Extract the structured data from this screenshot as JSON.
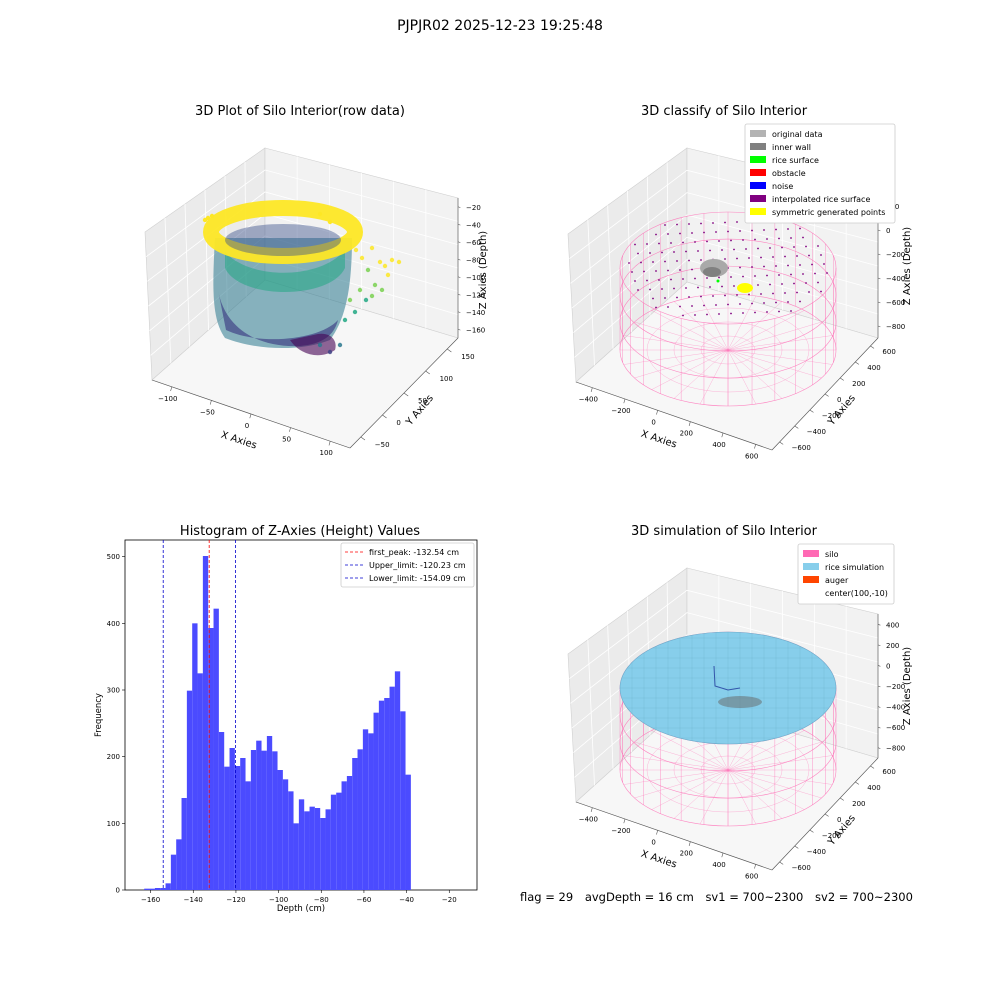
{
  "figure": {
    "suptitle": "PJPJR02 2025-12-23 19:25:48",
    "footer": {
      "flag": "flag = 29",
      "avg_depth": "avgDepth = 16 cm",
      "sv1": "sv1 = 700~2300",
      "sv2": "sv2 = 700~2300"
    }
  },
  "colors": {
    "hist_bar": "#4b4bff",
    "first_peak": "#ff0000",
    "limits": "#0000cc",
    "silo_pink": "#ff69b4",
    "rice_sim": "#87ceeb",
    "auger": "#ff4500"
  },
  "chart_data": [
    {
      "type": "scatter",
      "projection": "3d",
      "title": "3D Plot of Silo Interior(row data)",
      "xlabel": "X Axies",
      "ylabel": "Y Axies",
      "zlabel": "Z Axies (Depth)",
      "x_ticks": [
        "−100",
        "−50",
        "0",
        "50",
        "100"
      ],
      "y_ticks": [
        "−50",
        "0",
        "50",
        "100",
        "150"
      ],
      "z_ticks": [
        "−20",
        "−40",
        "−60",
        "−80",
        "−100",
        "−120",
        "−140",
        "−160"
      ],
      "colormap": "viridis"
    },
    {
      "type": "scatter",
      "projection": "3d",
      "title": "3D classify of Silo Interior",
      "xlabel": "X Axies",
      "ylabel": "Y Axies",
      "zlabel": "Z Axies (Depth)",
      "x_ticks": [
        "−400",
        "−200",
        "0",
        "200",
        "400",
        "600"
      ],
      "y_ticks": [
        "−600",
        "−400",
        "−200",
        "0",
        "200",
        "400",
        "600"
      ],
      "z_ticks": [
        "200",
        "0",
        "−200",
        "−400",
        "−600",
        "−800"
      ],
      "legend": [
        {
          "label": "original data",
          "color": "#b3b3b3"
        },
        {
          "label": "inner wall",
          "color": "#808080"
        },
        {
          "label": "rice surface",
          "color": "#00ff00"
        },
        {
          "label": "obstacle",
          "color": "#ff0000"
        },
        {
          "label": "noise",
          "color": "#0000ff"
        },
        {
          "label": "interpolated rice surface",
          "color": "#800080"
        },
        {
          "label": "symmetric generated points",
          "color": "#ffff00"
        }
      ]
    },
    {
      "type": "bar",
      "title": "Histogram of Z-Axies (Height) Values",
      "xlabel": "Depth (cm)",
      "ylabel": "Frequency",
      "xlim": [
        -172,
        -7
      ],
      "ylim": [
        0,
        525
      ],
      "x_ticks": [
        -160,
        -140,
        -120,
        -100,
        -80,
        -60,
        -40,
        -20
      ],
      "y_ticks": [
        0,
        100,
        200,
        300,
        400,
        500
      ],
      "bin_start": -163,
      "bin_width": 2.5,
      "values": [
        2,
        2,
        3,
        3,
        10,
        53,
        76,
        138,
        299,
        400,
        325,
        501,
        393,
        422,
        237,
        185,
        213,
        186,
        198,
        163,
        210,
        224,
        209,
        231,
        208,
        180,
        166,
        148,
        100,
        136,
        118,
        125,
        123,
        108,
        121,
        143,
        146,
        163,
        171,
        198,
        211,
        241,
        235,
        266,
        284,
        288,
        305,
        328,
        268,
        173
      ],
      "vlines": [
        {
          "label": "first_peak: -132.54 cm",
          "x": -132.54,
          "color": "#ff0000"
        },
        {
          "label": "Upper_limit: -120.23 cm",
          "x": -120.23,
          "color": "#0000cc"
        },
        {
          "label": "Lower_limit: -154.09 cm",
          "x": -154.09,
          "color": "#0000cc"
        }
      ]
    },
    {
      "type": "scatter",
      "projection": "3d",
      "title": "3D simulation of Silo Interior",
      "xlabel": "X Axies",
      "ylabel": "Y Axies",
      "zlabel": "Z Axies (Depth)",
      "x_ticks": [
        "−400",
        "−200",
        "0",
        "200",
        "400",
        "600"
      ],
      "y_ticks": [
        "−600",
        "−400",
        "−200",
        "0",
        "200",
        "400",
        "600"
      ],
      "z_ticks": [
        "400",
        "200",
        "0",
        "−200",
        "−400",
        "−600",
        "−800"
      ],
      "legend": [
        {
          "label": "silo",
          "color": "#ff69b4"
        },
        {
          "label": "rice simulation",
          "color": "#87ceeb"
        },
        {
          "label": "auger",
          "color": "#ff4500"
        },
        {
          "label": "center(100,-10)",
          "color": ""
        }
      ]
    }
  ]
}
